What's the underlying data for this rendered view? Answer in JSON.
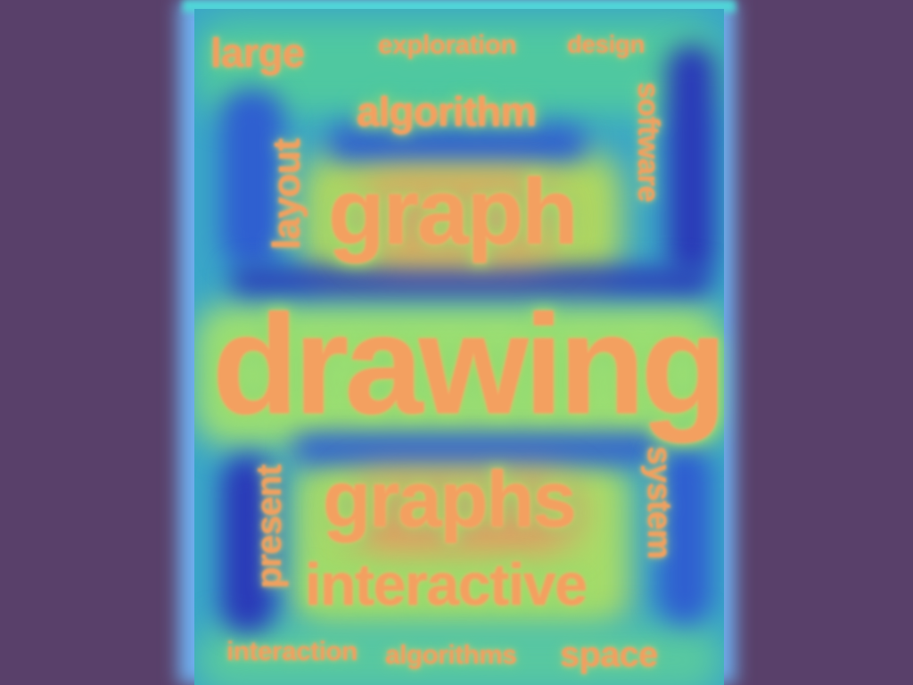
{
  "word_cloud": {
    "words": {
      "large": "large",
      "exploration": "exploration",
      "design": "design",
      "algorithm": "algorithm",
      "layout": "layout",
      "software": "software",
      "graph": "graph",
      "drawing": "drawing",
      "present": "present",
      "graphs": "graphs",
      "system": "system",
      "interactive": "interactive",
      "interaction": "interaction",
      "algorithms": "algorithms",
      "space": "space"
    },
    "colors": {
      "background": "#59406a",
      "panel": "#3aa6c8",
      "heat_hot": "#f39060",
      "heat_warm": "#c8e070",
      "heat_cool": "#2f5fd0"
    }
  }
}
